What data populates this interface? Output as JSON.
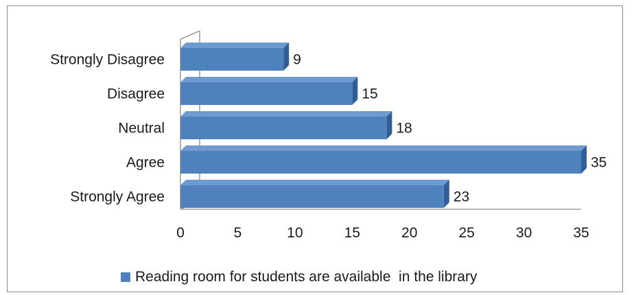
{
  "chart_data": {
    "type": "bar",
    "orientation": "horizontal",
    "style": "3d",
    "categories": [
      "Strongly Agree",
      "Agree",
      "Neutral",
      "Disagree",
      "Strongly Disagree"
    ],
    "series": [
      {
        "name": "Reading room for students are available  in the library",
        "values": [
          23,
          35,
          18,
          15,
          9
        ]
      }
    ],
    "xlim": [
      0,
      35
    ],
    "xticks": [
      0,
      5,
      10,
      15,
      20,
      25,
      30,
      35
    ],
    "data_labels": true,
    "grid": false,
    "legend_position": "bottom",
    "colors": {
      "bar": "#4f81bd",
      "bar_top": "#6d9bd1",
      "bar_side": "#2f5f98",
      "axis": "#8c8c8c"
    }
  }
}
